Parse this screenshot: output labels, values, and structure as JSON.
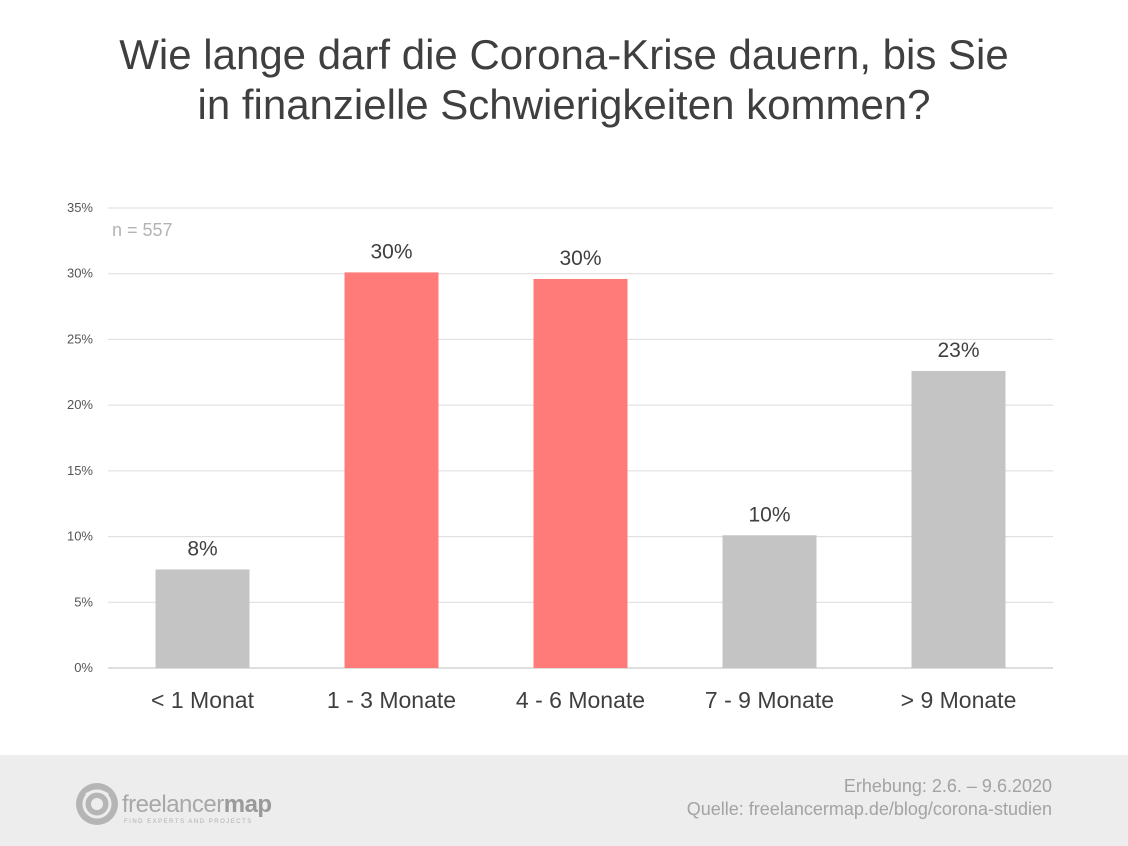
{
  "header": {
    "title_line1": "Wie lange darf die Corona-Krise dauern, bis Sie",
    "title_line2": "in finanzielle Schwierigkeiten kommen?"
  },
  "chart_data": {
    "type": "bar",
    "title": "Wie lange darf die Corona-Krise dauern, bis Sie in finanzielle Schwierigkeiten kommen?",
    "annotation": "n = 557",
    "categories": [
      "< 1 Monat",
      "1 - 3 Monate",
      "4 - 6 Monate",
      "7 - 9 Monate",
      "> 9 Monate"
    ],
    "values": [
      7.5,
      30.1,
      29.6,
      10.1,
      22.6
    ],
    "data_labels": [
      "8%",
      "30%",
      "30%",
      "10%",
      "23%"
    ],
    "bar_colors": [
      "#c4c4c4",
      "#ff7b79",
      "#ff7b79",
      "#c4c4c4",
      "#c4c4c4"
    ],
    "yticks": [
      "0%",
      "5%",
      "10%",
      "15%",
      "20%",
      "25%",
      "30%",
      "35%"
    ],
    "ylim": [
      0,
      35
    ],
    "grid": true,
    "legend": "none"
  },
  "footer": {
    "logo_text_light": "freelancer",
    "logo_text_bold": "map",
    "logo_tagline": "FIND EXPERTS AND PROJECTS",
    "survey_period": "Erhebung: 2.6. – 9.6.2020",
    "source": "Quelle: freelancermap.de/blog/corona-studien"
  }
}
